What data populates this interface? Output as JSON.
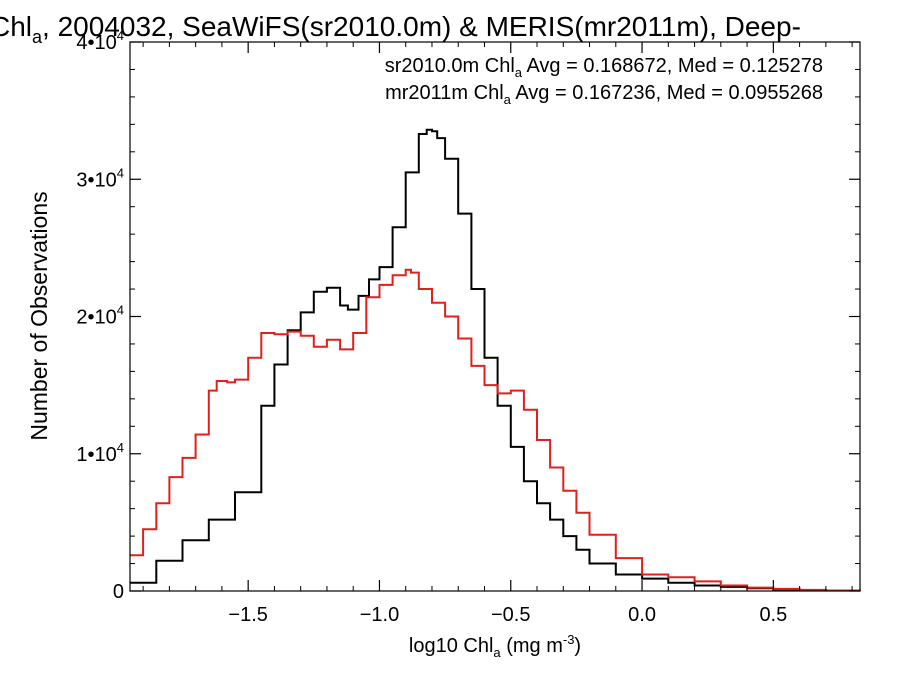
{
  "chart_data": {
    "type": "line",
    "title_prefix": "Chl",
    "title_sub": "a",
    "title_rest": ", 2004032, SeaWiFS(sr2010.0m) & MERIS(mr2011m), Deep-",
    "xlabel_prefix": "log10 Chl",
    "xlabel_sub": "a",
    "xlabel_rest": " (mg m",
    "xlabel_sup": "-3",
    "xlabel_close": ")",
    "ylabel": "Number of Observations",
    "xlim": [
      -1.95,
      0.83
    ],
    "ylim": [
      0,
      40000
    ],
    "x_ticks": [
      {
        "value": -1.5,
        "label": "−1.5"
      },
      {
        "value": -1.0,
        "label": "−1.0"
      },
      {
        "value": -0.5,
        "label": "−0.5"
      },
      {
        "value": 0.0,
        "label": "0.0"
      },
      {
        "value": 0.5,
        "label": "0.5"
      }
    ],
    "y_ticks": [
      {
        "value": 0,
        "mantissa": "0",
        "exp": ""
      },
      {
        "value": 10000,
        "mantissa": "1•10",
        "exp": "4"
      },
      {
        "value": 20000,
        "mantissa": "2•10",
        "exp": "4"
      },
      {
        "value": 30000,
        "mantissa": "3•10",
        "exp": "4"
      },
      {
        "value": 40000,
        "mantissa": "4•10",
        "exp": "4"
      }
    ],
    "grid": false,
    "step": true,
    "legend_position": "top-right",
    "series": [
      {
        "name": "sr2010.0m",
        "color": "#000000",
        "legend": {
          "prefix": "sr2010.0m Chl",
          "sub": "a",
          "rest": " Avg = 0.168672, Med = 0.125278"
        },
        "x": [
          -1.95,
          -1.85,
          -1.75,
          -1.65,
          -1.55,
          -1.45,
          -1.4,
          -1.35,
          -1.3,
          -1.25,
          -1.2,
          -1.15,
          -1.12,
          -1.08,
          -1.04,
          -1.0,
          -0.95,
          -0.9,
          -0.85,
          -0.82,
          -0.8,
          -0.78,
          -0.75,
          -0.7,
          -0.65,
          -0.6,
          -0.55,
          -0.5,
          -0.45,
          -0.4,
          -0.35,
          -0.3,
          -0.25,
          -0.2,
          -0.1,
          0.0,
          0.1,
          0.2,
          0.3,
          0.4,
          0.5,
          0.6,
          0.7,
          0.83
        ],
        "y": [
          600,
          2200,
          3700,
          5200,
          7200,
          13500,
          16500,
          19000,
          20300,
          21800,
          22100,
          20800,
          20500,
          21500,
          22700,
          23600,
          26500,
          30500,
          33300,
          33600,
          33500,
          33000,
          31500,
          27500,
          22000,
          17000,
          13500,
          10500,
          8000,
          6400,
          5200,
          4000,
          3000,
          2000,
          1200,
          900,
          600,
          400,
          300,
          200,
          120,
          60,
          40,
          20
        ]
      },
      {
        "name": "mr2011m",
        "color": "#e0201a",
        "legend": {
          "prefix": "mr2011m Chl",
          "sub": "a",
          "rest": " Avg = 0.167236, Med = 0.0955268"
        },
        "x": [
          -1.95,
          -1.9,
          -1.85,
          -1.8,
          -1.75,
          -1.7,
          -1.65,
          -1.62,
          -1.58,
          -1.55,
          -1.5,
          -1.45,
          -1.4,
          -1.35,
          -1.3,
          -1.25,
          -1.2,
          -1.15,
          -1.1,
          -1.05,
          -1.0,
          -0.95,
          -0.9,
          -0.88,
          -0.85,
          -0.8,
          -0.75,
          -0.7,
          -0.65,
          -0.6,
          -0.55,
          -0.5,
          -0.45,
          -0.4,
          -0.35,
          -0.3,
          -0.25,
          -0.2,
          -0.1,
          0.0,
          0.1,
          0.15,
          0.2,
          0.3,
          0.4,
          0.5,
          0.6,
          0.7,
          0.83
        ],
        "y": [
          2600,
          4500,
          6400,
          8300,
          9700,
          11400,
          14600,
          15300,
          15200,
          15400,
          17000,
          18800,
          18700,
          18900,
          18600,
          17800,
          18300,
          17600,
          18800,
          21400,
          22300,
          23000,
          23400,
          23200,
          22000,
          21000,
          20000,
          18400,
          16400,
          15000,
          14400,
          14600,
          13200,
          11000,
          9000,
          7300,
          5700,
          4100,
          2400,
          1200,
          1000,
          1000,
          700,
          400,
          250,
          150,
          80,
          40,
          20
        ]
      }
    ]
  }
}
